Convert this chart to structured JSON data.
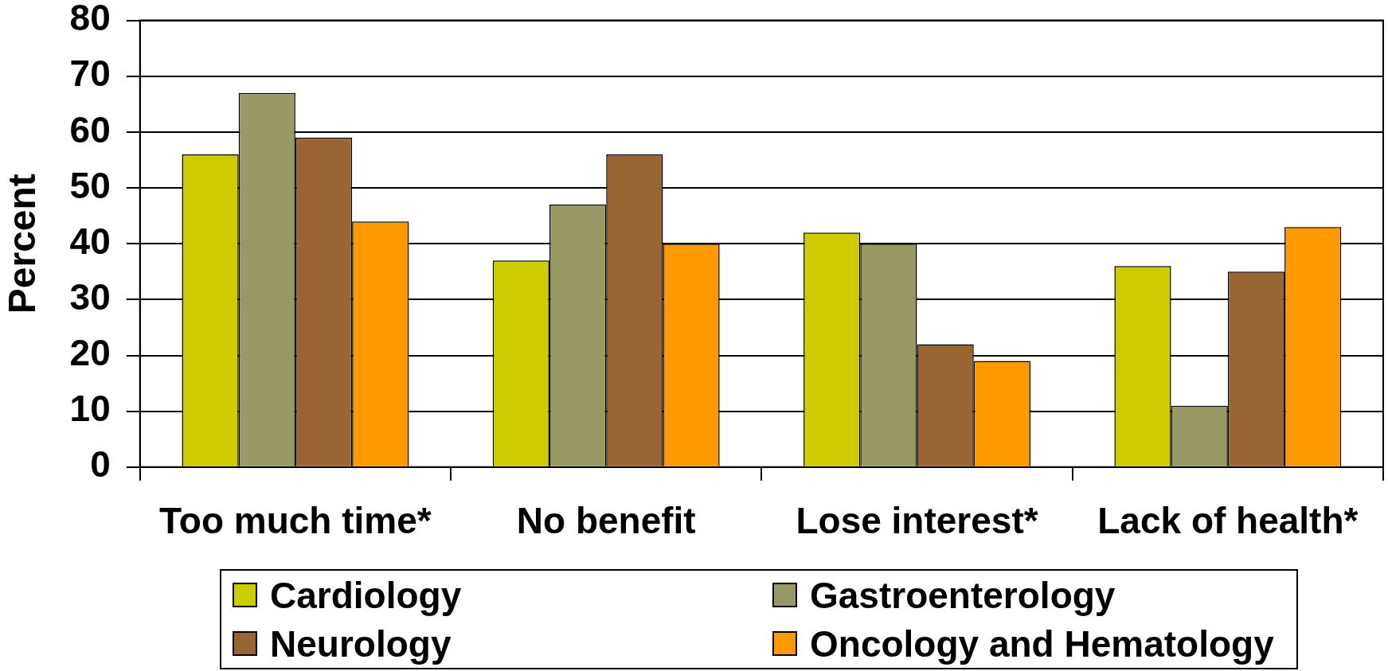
{
  "chart_data": {
    "type": "bar",
    "ylabel": "Percent",
    "categories": [
      "Too much time*",
      "No benefit",
      "Lose interest*",
      "Lack of health*"
    ],
    "series": [
      {
        "name": "Cardiology",
        "color": "#cccc00",
        "values": [
          56,
          37,
          42,
          36
        ]
      },
      {
        "name": "Gastroenterology",
        "color": "#999966",
        "values": [
          67,
          47,
          40,
          11
        ]
      },
      {
        "name": "Neurology",
        "color": "#996633",
        "values": [
          59,
          56,
          22,
          35
        ]
      },
      {
        "name": "Oncology and Hematology",
        "color": "#ff9900",
        "values": [
          44,
          40,
          19,
          43
        ]
      }
    ],
    "ylim": [
      0,
      80
    ],
    "yticks": [
      0,
      10,
      20,
      30,
      40,
      50,
      60,
      70,
      80
    ],
    "grid": "y",
    "legend": "bottom"
  }
}
